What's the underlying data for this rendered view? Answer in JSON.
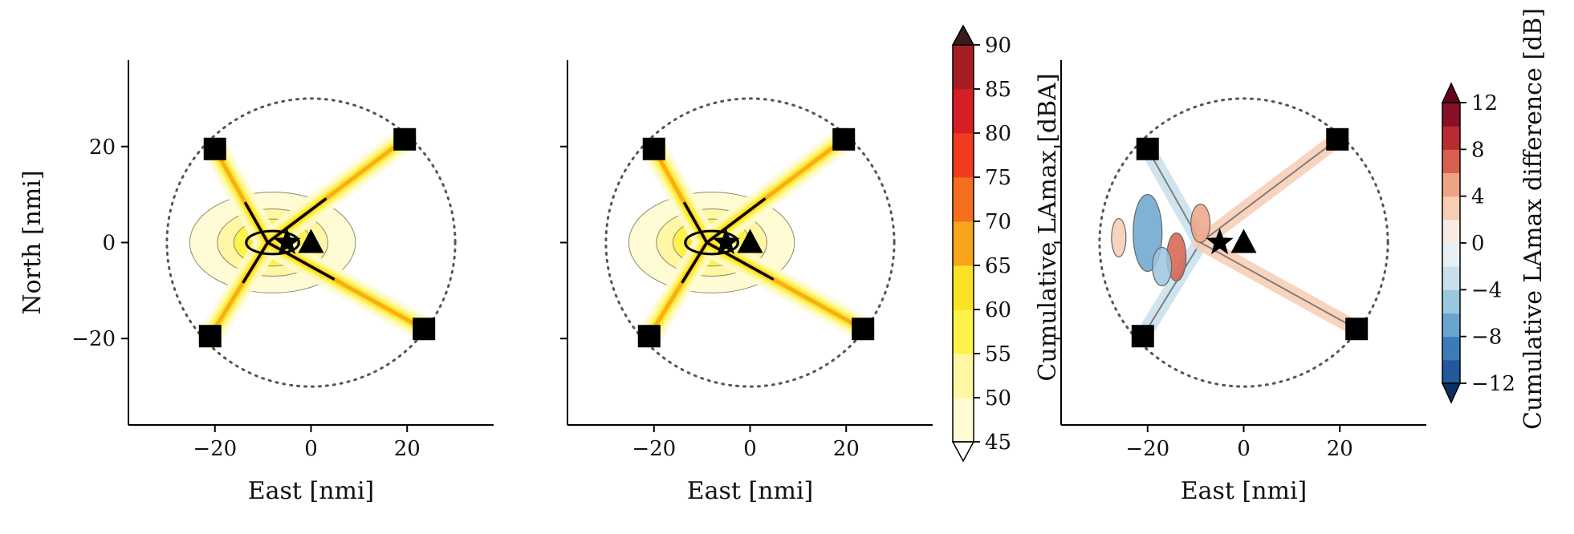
{
  "colors": {
    "background": "#ffffff",
    "axis": "#000000",
    "boundary_ring": "#555555",
    "marker": "#000000",
    "contour_line": "#000000",
    "diff_contour_line": "#666666"
  },
  "chart_data": [
    {
      "type": "heatmap",
      "panel": "left",
      "title": "",
      "xlabel": "East [nmi]",
      "ylabel": "North [nmi]",
      "xlim": [
        -38,
        38
      ],
      "ylim": [
        -38,
        38
      ],
      "x_ticks": [
        -20,
        0,
        20
      ],
      "y_ticks": [
        -20,
        0,
        20
      ],
      "x_tick_labels": [
        "−20",
        "0",
        "20"
      ],
      "y_tick_labels": [
        "−20",
        "0",
        "20"
      ],
      "boundary_circle_radius": 30,
      "markers": {
        "squares": [
          [
            -20,
            19.5
          ],
          [
            19.5,
            21.5
          ],
          [
            -21,
            -19.5
          ],
          [
            23.5,
            -18
          ]
        ],
        "star": [
          -5,
          0
        ],
        "triangle": [
          0,
          0
        ]
      },
      "contour_arms": [
        {
          "to": [
            -20,
            19.5
          ]
        },
        {
          "to": [
            19.5,
            21.5
          ]
        },
        {
          "to": [
            -21,
            -19.5
          ]
        },
        {
          "to": [
            23.5,
            -18
          ]
        }
      ],
      "colorbar": "lamax"
    },
    {
      "type": "heatmap",
      "panel": "middle",
      "title": "",
      "xlabel": "East [nmi]",
      "ylabel": "",
      "xlim": [
        -38,
        38
      ],
      "ylim": [
        -38,
        38
      ],
      "x_ticks": [
        -20,
        0,
        20
      ],
      "y_ticks": [
        -20,
        0,
        20
      ],
      "x_tick_labels": [
        "−20",
        "0",
        "20"
      ],
      "y_tick_labels": [
        "",
        "",
        ""
      ],
      "boundary_circle_radius": 30,
      "markers": {
        "squares": [
          [
            -20,
            19.5
          ],
          [
            19.5,
            21.5
          ],
          [
            -21,
            -19.5
          ],
          [
            23.5,
            -18
          ]
        ],
        "star": [
          -5,
          0
        ],
        "triangle": [
          0,
          0
        ]
      },
      "colorbar": "lamax"
    },
    {
      "type": "heatmap",
      "panel": "right",
      "title": "",
      "xlabel": "East [nmi]",
      "ylabel": "",
      "xlim": [
        -38,
        38
      ],
      "ylim": [
        -38,
        38
      ],
      "x_ticks": [
        -20,
        0,
        20
      ],
      "y_ticks": [
        -20,
        0,
        20
      ],
      "x_tick_labels": [
        "−20",
        "0",
        "20"
      ],
      "y_tick_labels": [
        "",
        "",
        ""
      ],
      "boundary_circle_radius": 30,
      "markers": {
        "squares": [
          [
            -20,
            19.5
          ],
          [
            19.5,
            21.5
          ],
          [
            -21,
            -19.5
          ],
          [
            23.5,
            -18
          ]
        ],
        "star": [
          -5,
          0
        ],
        "triangle": [
          0,
          0
        ]
      },
      "colorbar": "difference"
    }
  ],
  "colorbars": {
    "lamax": {
      "label": "Cumulative LAmax [dBA]",
      "levels": [
        45,
        50,
        55,
        60,
        65,
        70,
        75,
        80,
        85,
        90
      ],
      "tick_labels": [
        "45",
        "50",
        "55",
        "60",
        "65",
        "70",
        "75",
        "80",
        "85",
        "90"
      ],
      "bin_colors": [
        "#fffbd3",
        "#fff6a3",
        "#fdf247",
        "#fbe224",
        "#f8a51b",
        "#f56f1f",
        "#f13c20",
        "#d61f24",
        "#a81d24",
        "#7b1d20"
      ],
      "extend_min_color": "#ffffff",
      "extend_max_color": "#3a1a1a"
    },
    "difference": {
      "label": "Cumulative LAmax difference [dB]",
      "levels": [
        -12,
        -10,
        -8,
        -6,
        -4,
        -2,
        0,
        2,
        4,
        6,
        8,
        10,
        12
      ],
      "ticks": [
        -12,
        -8,
        -4,
        0,
        4,
        8,
        12
      ],
      "tick_labels": [
        "−12",
        "−8",
        "−4",
        "0",
        "4",
        "8",
        "12"
      ],
      "bin_colors": [
        "#21589e",
        "#3b7bb8",
        "#6aa5cf",
        "#9bc6e0",
        "#c8dfec",
        "#e8f0f5",
        "#f8ebe4",
        "#f7cdb4",
        "#eea385",
        "#d6604d",
        "#b82b32",
        "#8a1027"
      ],
      "extend_min_color": "#0b2f5e",
      "extend_max_color": "#67001f"
    }
  }
}
